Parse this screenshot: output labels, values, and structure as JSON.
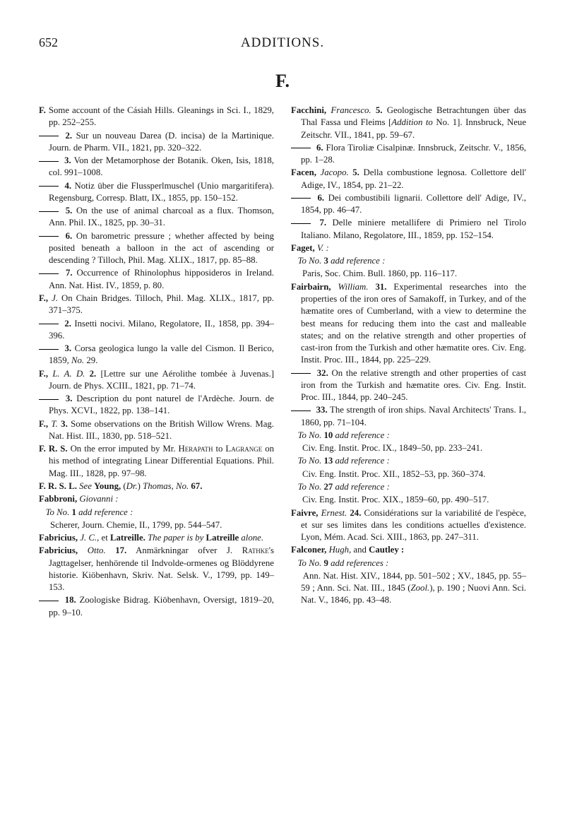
{
  "pageNumber": "652",
  "pageTitle": "ADDITIONS.",
  "sectionLetter": "F.",
  "entries": [
    {
      "html": "<span class='b'>F.</span> Some account of the Cásiah Hills. Gleanings in Sci. I., 1829, pp. 252–255."
    },
    {
      "html": "<span class='dash'></span> <span class='b'>2.</span> Sur un nouveau Darea (D. incisa) de la Martinique. Journ. de Pharm. VII., 1821, pp. 320–322."
    },
    {
      "html": "<span class='dash'></span> <span class='b'>3.</span> Von der Metamorphose der Botanik. Oken, Isis, 1818, col. 991–1008."
    },
    {
      "html": "<span class='dash'></span> <span class='b'>4.</span> Notiz über die Flussperlmuschel (Unio margaritifera). Regensburg, Corresp. Blatt, IX., 1855, pp. 150–152."
    },
    {
      "html": "<span class='dash'></span> <span class='b'>5.</span> On the use of animal charcoal as a flux. Thomson, Ann. Phil. IX., 1825, pp. 30–31."
    },
    {
      "html": "<span class='dash'></span> <span class='b'>6.</span> On barometric pressure ; whether affected by being posited beneath a balloon in the act of ascending or descending ? Tilloch, Phil. Mag. XLIX., 1817, pp. 85–88."
    },
    {
      "html": "<span class='dash'></span> <span class='b'>7.</span> Occurrence of Rhinolophus hipposideros in Ireland. Ann. Nat. Hist. IV., 1859, p. 80."
    },
    {
      "html": "<span class='b'>F.,</span> <span class='i'>J.</span> On Chain Bridges. Tilloch, Phil. Mag. XLIX., 1817, pp. 371–375."
    },
    {
      "html": "<span class='dash'></span> <span class='b'>2.</span> Insetti nocivi. Milano, Regolatore, II., 1858, pp. 394–396."
    },
    {
      "html": "<span class='dash'></span> <span class='b'>3.</span> Corsa geologica lungo la valle del Cismon. Il Berico, 1859, <span class='i'>No.</span> 29."
    },
    {
      "html": "<span class='b'>F.,</span> <span class='i'>L. A. D.</span> <span class='b'>2.</span> [Lettre sur une Aérolithe tombée à Juvenas.] Journ. de Phys. XCIII., 1821, pp. 71–74."
    },
    {
      "html": "<span class='dash'></span> <span class='b'>3.</span> Description du pont naturel de l'Ardèche. Journ. de Phys. XCVI., 1822, pp. 138–141."
    },
    {
      "html": "<span class='b'>F.,</span> <span class='i'>T.</span> <span class='b'>3.</span> Some observations on the British Willow Wrens. Mag. Nat. Hist. III., 1830, pp. 518–521."
    },
    {
      "html": "<span class='b'>F. R. S.</span> On the error imputed by Mr. H<span style='font-variant:small-caps'>erapath</span> to L<span style='font-variant:small-caps'>agrange</span> on his method of integrating Linear Differential Equations. Phil. Mag. III., 1828, pp. 97–98."
    },
    {
      "html": "<span class='b'>F. R. S. L.</span> <span class='i'>See</span> <span class='b'>Young,</span> (<span class='i'>Dr.</span>) <span class='i'>Thomas, No.</span> <span class='b'>67.</span>"
    },
    {
      "html": "<span class='b'>Fabbroni,</span> <span class='i'>Giovanni :</span>"
    },
    {
      "html": "&nbsp;&nbsp;&nbsp;<span class='i'>To No.</span> <span class='b'>1</span> <span class='i'>add reference :</span>"
    },
    {
      "html": "&nbsp;&nbsp;&nbsp;&nbsp;&nbsp;Scherer, Journ. Chemie, II., 1799, pp. 544–547."
    },
    {
      "html": "<span class='b'>Fabricius,</span> <span class='i'>J. C.</span>, et <span class='b'>Latreille.</span> <span class='i'>The paper is by</span> <span class='b'>Latreille</span> <span class='i'>alone.</span>"
    },
    {
      "html": "<span class='b'>Fabricius,</span> <span class='i'>Otto.</span> <span class='b'>17.</span> Anmärkningar ofver J. R<span style='font-variant:small-caps'>athke</span>'s Jagttagelser, henhörende til Indvolde-ormenes og Blöddyrene historie. Kiöbenhavn, Skriv. Nat. Selsk. V., 1799, pp. 149–153."
    },
    {
      "html": "<span class='dash'></span> <span class='b'>18.</span> Zoologiske Bidrag. Kiöbenhavn, Oversigt, 1819–20, pp. 9–10."
    },
    {
      "html": "<span class='b'>Facchini,</span> <span class='i'>Francesco.</span> <span class='b'>5.</span> Geologische Betrachtungen über das Thal Fassa und Fleims [<span class='i'>Addition to</span> No. 1]. Innsbruck, Neue Zeitschr. VII., 1841, pp. 59–67."
    },
    {
      "html": "<span class='dash'></span> <span class='b'>6.</span> Flora Tiroliæ Cisalpinæ. Innsbruck, Zeitschr. V., 1856, pp. 1–28."
    },
    {
      "html": "<span class='b'>Facen,</span> <span class='i'>Jacopo.</span> <span class='b'>5.</span> Della combustione legnosa. Collettore dell' Adige, IV., 1854, pp. 21–22."
    },
    {
      "html": "<span class='dash'></span> <span class='b'>6.</span> Dei combustibili lignarii. Collettore dell' Adige, IV., 1854, pp. 46–47."
    },
    {
      "html": "<span class='dash'></span> <span class='b'>7.</span> Delle miniere metallifere di Primiero nel Tirolo Italiano. Milano, Regolatore, III., 1859, pp. 152–154."
    },
    {
      "html": "<span class='b'>Faget,</span> <span class='i'>V. :</span>"
    },
    {
      "html": "&nbsp;&nbsp;&nbsp;<span class='i'>To No.</span> <span class='b'>3</span> <span class='i'>add reference :</span>"
    },
    {
      "html": "&nbsp;&nbsp;&nbsp;&nbsp;&nbsp;Paris, Soc. Chim. Bull. 1860, pp. 116–117."
    },
    {
      "html": "<span class='b'>Fairbairn,</span> <span class='i'>William.</span> <span class='b'>31.</span> Experimental researches into the properties of the iron ores of Samakoff, in Turkey, and of the hæmatite ores of Cumberland, with a view to determine the best means for reducing them into the cast and malleable states; and on the relative strength and other properties of cast-iron from the Turkish and other hæmatite ores. Civ. Eng. Instit. Proc. III., 1844, pp. 225–229."
    },
    {
      "html": "<span class='dash'></span> <span class='b'>32.</span> On the relative strength and other properties of cast iron from the Turkish and hæmatite ores. Civ. Eng. Instit. Proc. III., 1844, pp. 240–245."
    },
    {
      "html": "<span class='dash'></span> <span class='b'>33.</span> The strength of iron ships. Naval Architects' Trans. I., 1860, pp. 71–104."
    },
    {
      "html": "&nbsp;&nbsp;&nbsp;<span class='i'>To No.</span> <span class='b'>10</span> <span class='i'>add reference :</span>"
    },
    {
      "html": "&nbsp;&nbsp;&nbsp;&nbsp;&nbsp;Civ. Eng. Instit. Proc. IX., 1849–50, pp. 233–241."
    },
    {
      "html": "&nbsp;&nbsp;&nbsp;<span class='i'>To No.</span> <span class='b'>13</span> <span class='i'>add reference :</span>"
    },
    {
      "html": "&nbsp;&nbsp;&nbsp;&nbsp;&nbsp;Civ. Eng. Instit. Proc. XII., 1852–53, pp. 360–374."
    },
    {
      "html": "&nbsp;&nbsp;&nbsp;<span class='i'>To No.</span> <span class='b'>27</span> <span class='i'>add reference :</span>"
    },
    {
      "html": "&nbsp;&nbsp;&nbsp;&nbsp;&nbsp;Civ. Eng. Instit. Proc. XIX., 1859–60, pp. 490–517."
    },
    {
      "html": "<span class='b'>Faivre,</span> <span class='i'>Ernest.</span> <span class='b'>24.</span> Considérations sur la variabilité de l'espèce, et sur ses limites dans les conditions actuelles d'existence. Lyon, Mém. Acad. Sci. XIII., 1863, pp. 247–311."
    },
    {
      "html": "<span class='b'>Falconer,</span> <span class='i'>Hugh</span>, and <span class='b'>Cautley :</span>"
    },
    {
      "html": "&nbsp;&nbsp;&nbsp;<span class='i'>To No.</span> <span class='b'>9</span> <span class='i'>add references :</span>"
    },
    {
      "html": "&nbsp;&nbsp;&nbsp;&nbsp;&nbsp;Ann. Nat. Hist. XIV., 1844, pp. 501–502 ; XV., 1845, pp. 55–59 ; Ann. Sci. Nat. III., 1845 (<span class='i'>Zool.</span>), p. 190 ; Nuovi Ann. Sci. Nat. V., 1846, pp. 43–48."
    }
  ]
}
